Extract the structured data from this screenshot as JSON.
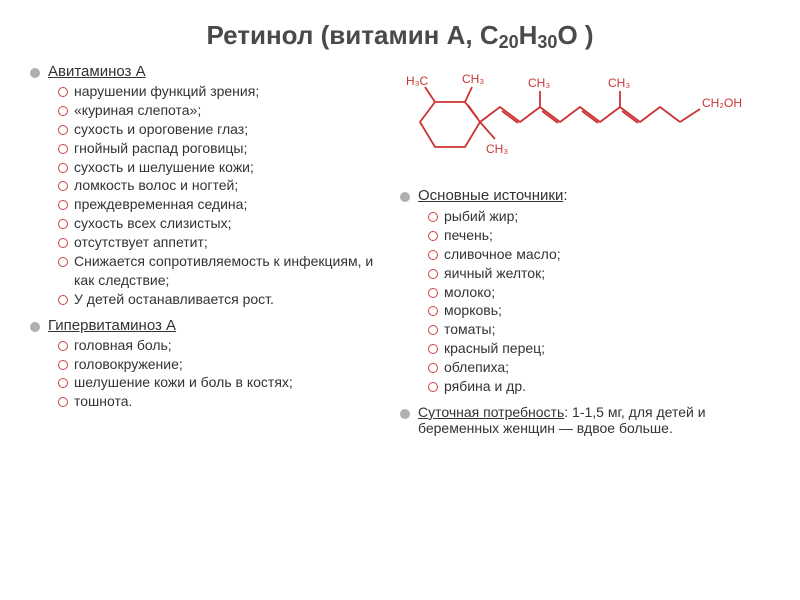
{
  "title_parts": {
    "p1": "Ретинол (витамин А, С",
    "s1": "20",
    "p2": "Н",
    "s2": "30",
    "p3": "О )"
  },
  "colors": {
    "title": "#4a4a4a",
    "text": "#333333",
    "bullet_ring": "#cc4444",
    "dot": "#b0b0b0",
    "chem_line": "#cc3333",
    "background": "#ffffff"
  },
  "left": {
    "section1": {
      "title": "Авитаминоз А",
      "items": [
        "нарушении функций зрения;",
        "«куриная слепота»;",
        "сухость и ороговение глаз;",
        "гнойный распад роговицы;",
        "сухость и шелушение кожи;",
        "ломкость волос и ногтей;",
        "преждевременная седина;",
        "сухость всех слизистых;",
        "отсутствует аппетит;",
        "Снижается сопротивляемость к инфекциям, и как следствие;",
        "У детей останавливается рост."
      ]
    },
    "section2": {
      "title": "Гипервитаминоз А",
      "items": [
        "головная боль;",
        "головокружение;",
        "шелушение кожи и боль в костях;",
        " тошнота."
      ]
    }
  },
  "right": {
    "chem_labels": {
      "ch3_a": "H₃C",
      "ch3_b": "CH₃",
      "ch3_c": "CH₃",
      "ch3_d": "CH₃",
      "ch3_e": "CH₃",
      "ch2oh": "CH₂OH"
    },
    "sources": {
      "title": "Основные источники",
      "colon": ":",
      "items": [
        "рыбий жир;",
        "печень;",
        "сливочное масло;",
        "яичный желток;",
        "молоко;",
        "морковь;",
        "томаты;",
        "красный перец;",
        "облепиха;",
        "рябина и др."
      ]
    },
    "daily": {
      "label": "Суточная потребность",
      "text": ": 1-1,5 мг, для детей и беременных женщин — вдвое больше."
    }
  },
  "watermark": ""
}
